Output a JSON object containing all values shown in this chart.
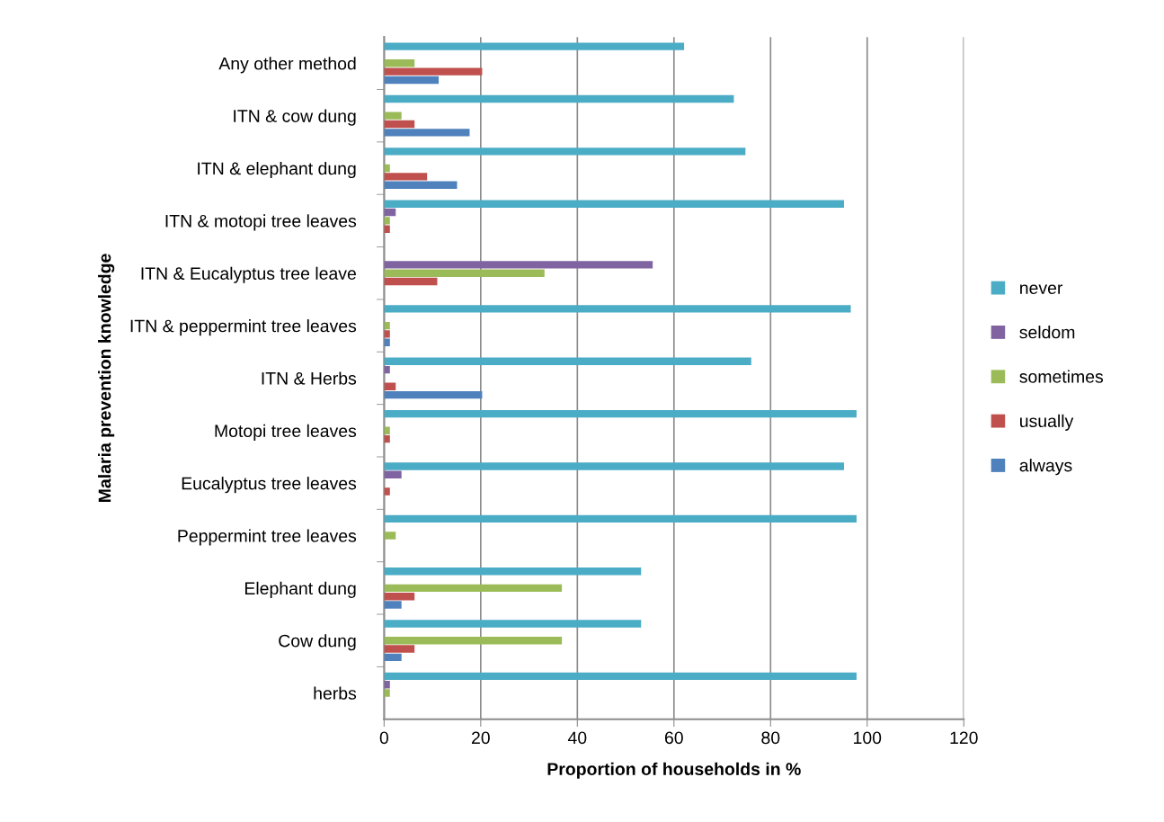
{
  "chart_data": {
    "type": "bar",
    "orientation": "horizontal",
    "xlabel": "Proportion of households in %",
    "ylabel": "Malaria prevention knowledge",
    "categories": [
      "Any other method",
      "ITN & cow dung",
      "ITN & elephant dung",
      "ITN & motopi tree leaves",
      "ITN & Eucalyptus tree leave",
      "ITN & peppermint tree leaves",
      "ITN & Herbs",
      "Motopi tree leaves",
      "Eucalyptus tree leaves",
      "Peppermint tree leaves",
      "Elephant dung",
      "Cow dung",
      "herbs"
    ],
    "series": [
      {
        "name": "never",
        "color": "#4bacc6",
        "values": [
          62.1,
          72.4,
          74.8,
          95.2,
          null,
          96.6,
          76.0,
          97.8,
          95.2,
          97.8,
          53.2,
          53.2,
          97.8
        ]
      },
      {
        "name": "seldom",
        "color": "#8064a2",
        "values": [
          null,
          null,
          null,
          2.4,
          55.6,
          null,
          1.2,
          null,
          3.6,
          null,
          null,
          null,
          1.2
        ]
      },
      {
        "name": "sometimes",
        "color": "#9bbb59",
        "values": [
          6.3,
          3.6,
          1.2,
          1.2,
          33.2,
          1.2,
          null,
          1.2,
          null,
          2.4,
          36.8,
          36.8,
          1.2
        ]
      },
      {
        "name": "usually",
        "color": "#c0504d",
        "values": [
          20.3,
          6.3,
          8.9,
          1.2,
          11.0,
          1.2,
          2.4,
          1.2,
          1.2,
          null,
          6.3,
          6.3,
          null
        ]
      },
      {
        "name": "always",
        "color": "#4f81bd",
        "values": [
          11.3,
          17.7,
          15.1,
          null,
          null,
          1.2,
          20.3,
          null,
          null,
          null,
          3.6,
          3.6,
          null
        ]
      }
    ],
    "xlim": [
      0,
      120
    ],
    "xticks": [
      0,
      20,
      40,
      60,
      80,
      100,
      120
    ],
    "grid": "x",
    "legend": "right"
  }
}
